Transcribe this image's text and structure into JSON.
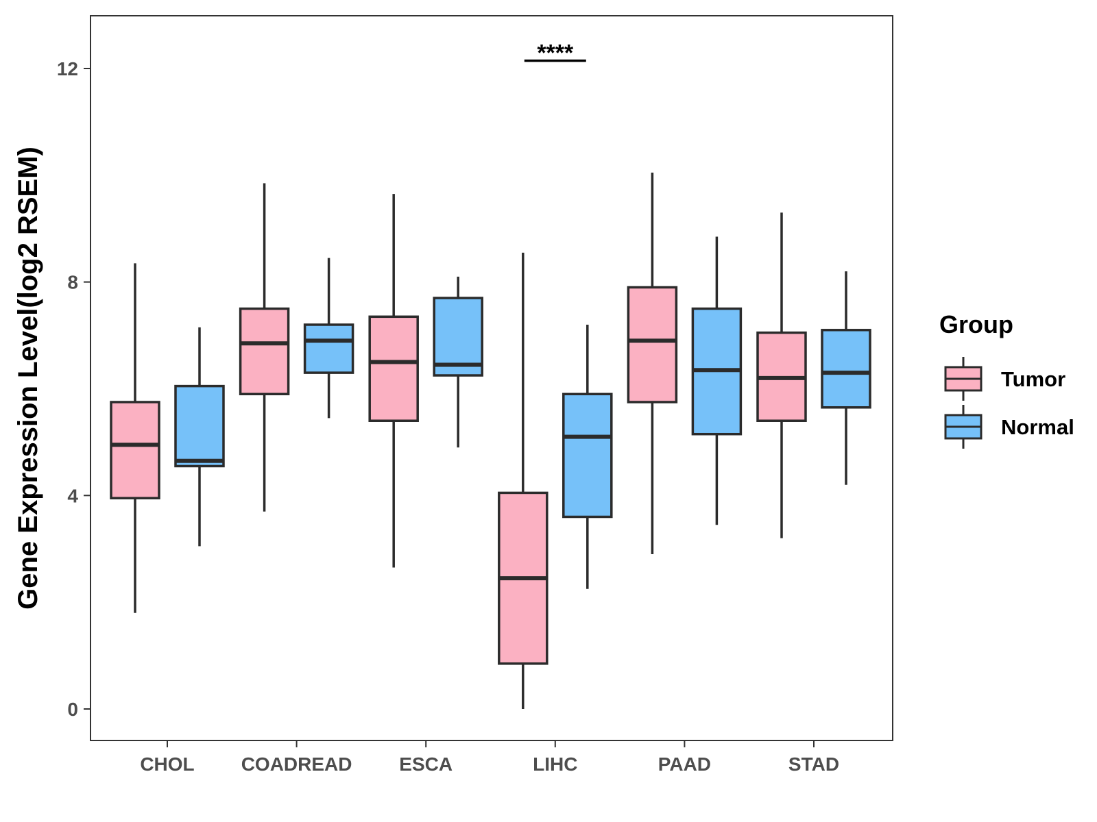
{
  "chart_data": {
    "type": "boxplot",
    "title": "",
    "xlabel": "",
    "ylabel": "Gene Expression Level(log2 RSEM)",
    "ylim": [
      -0.6,
      13.0
    ],
    "yticks": [
      0,
      4,
      8,
      12
    ],
    "grid": false,
    "categories": [
      "CHOL",
      "COADREAD",
      "ESCA",
      "LIHC",
      "PAAD",
      "STAD"
    ],
    "legend": {
      "title": "Group",
      "position": "right"
    },
    "series": [
      {
        "name": "Tumor",
        "color": "#FBB1C2",
        "boxes": [
          {
            "category": "CHOL",
            "min": 1.8,
            "q1": 3.95,
            "median": 4.95,
            "q3": 5.75,
            "max": 8.35
          },
          {
            "category": "COADREAD",
            "min": 3.7,
            "q1": 5.9,
            "median": 6.85,
            "q3": 7.5,
            "max": 9.85
          },
          {
            "category": "ESCA",
            "min": 2.65,
            "q1": 5.4,
            "median": 6.5,
            "q3": 7.35,
            "max": 9.65
          },
          {
            "category": "LIHC",
            "min": 0.0,
            "q1": 0.85,
            "median": 2.45,
            "q3": 4.05,
            "max": 8.55
          },
          {
            "category": "PAAD",
            "min": 2.9,
            "q1": 5.75,
            "median": 6.9,
            "q3": 7.9,
            "max": 10.05
          },
          {
            "category": "STAD",
            "min": 3.2,
            "q1": 5.4,
            "median": 6.2,
            "q3": 7.05,
            "max": 9.3
          }
        ]
      },
      {
        "name": "Normal",
        "color": "#76C1F9",
        "boxes": [
          {
            "category": "CHOL",
            "min": 3.05,
            "q1": 4.55,
            "median": 4.65,
            "q3": 6.05,
            "max": 7.15
          },
          {
            "category": "COADREAD",
            "min": 5.45,
            "q1": 6.3,
            "median": 6.9,
            "q3": 7.2,
            "max": 8.45
          },
          {
            "category": "ESCA",
            "min": 4.9,
            "q1": 6.25,
            "median": 6.45,
            "q3": 7.7,
            "max": 8.1
          },
          {
            "category": "LIHC",
            "min": 2.25,
            "q1": 3.6,
            "median": 5.1,
            "q3": 5.9,
            "max": 7.2
          },
          {
            "category": "PAAD",
            "min": 3.45,
            "q1": 5.15,
            "median": 6.35,
            "q3": 7.5,
            "max": 8.85
          },
          {
            "category": "STAD",
            "min": 4.2,
            "q1": 5.65,
            "median": 6.3,
            "q3": 7.1,
            "max": 8.2
          }
        ]
      }
    ],
    "annotations": [
      {
        "category": "LIHC",
        "text": "****",
        "y": 12.3
      }
    ]
  }
}
